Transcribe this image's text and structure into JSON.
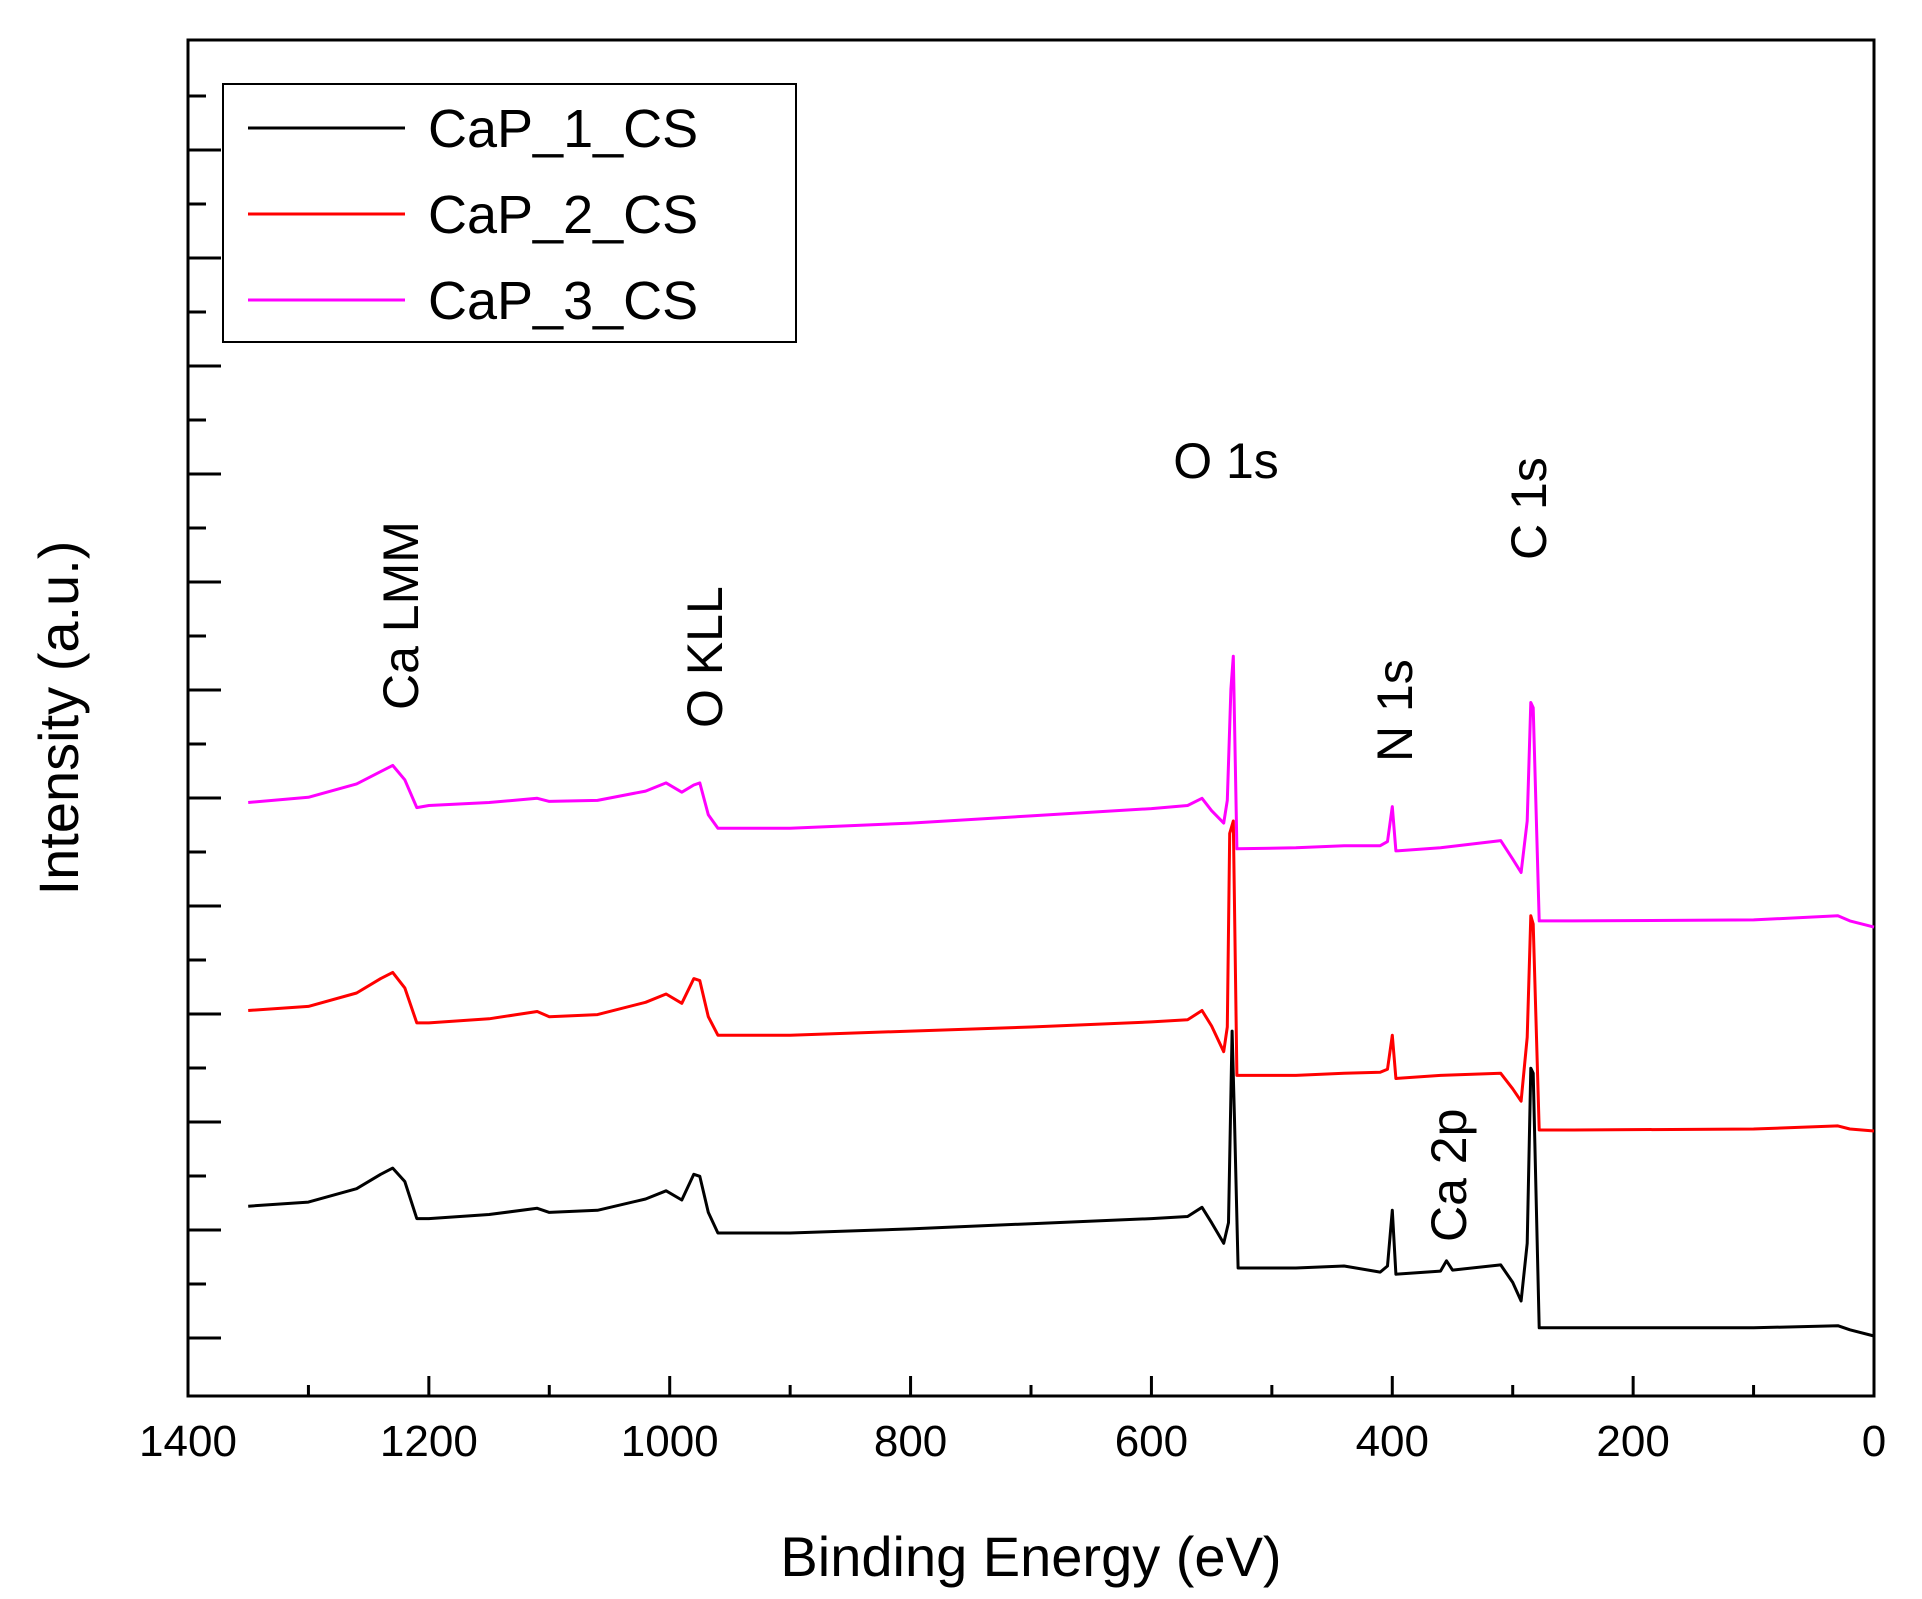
{
  "chart_data": {
    "type": "line",
    "title": "",
    "xlabel": "Binding Energy (eV)",
    "ylabel": "Intensity (a.u.)",
    "xlim": [
      1400,
      0
    ],
    "x_reversed": true,
    "xticks": [
      1400,
      1200,
      1000,
      800,
      600,
      400,
      200,
      0
    ],
    "y_ticks_unlabeled": true,
    "ylim": [
      0,
      12
    ],
    "grid": false,
    "legend_position": "top-left",
    "series": [
      {
        "name": "CaP_1_CS",
        "color": "#000000",
        "points": [
          [
            1350,
            1.26
          ],
          [
            1300,
            1.3
          ],
          [
            1260,
            1.43
          ],
          [
            1240,
            1.57
          ],
          [
            1230,
            1.63
          ],
          [
            1220,
            1.5
          ],
          [
            1210,
            1.14
          ],
          [
            1200,
            1.14
          ],
          [
            1150,
            1.18
          ],
          [
            1110,
            1.24
          ],
          [
            1100,
            1.2
          ],
          [
            1060,
            1.22
          ],
          [
            1020,
            1.33
          ],
          [
            1003,
            1.41
          ],
          [
            990,
            1.32
          ],
          [
            980,
            1.57
          ],
          [
            975,
            1.55
          ],
          [
            968,
            1.2
          ],
          [
            960,
            1.0
          ],
          [
            900,
            1.0
          ],
          [
            800,
            1.04
          ],
          [
            700,
            1.09
          ],
          [
            600,
            1.14
          ],
          [
            570,
            1.16
          ],
          [
            558,
            1.25
          ],
          [
            550,
            1.1
          ],
          [
            540,
            0.9
          ],
          [
            536,
            1.1
          ],
          [
            533,
            2.96
          ],
          [
            531,
            2.1
          ],
          [
            528,
            0.66
          ],
          [
            480,
            0.66
          ],
          [
            440,
            0.68
          ],
          [
            410,
            0.62
          ],
          [
            404,
            0.68
          ],
          [
            400,
            1.22
          ],
          [
            397,
            0.6
          ],
          [
            360,
            0.63
          ],
          [
            355,
            0.73
          ],
          [
            350,
            0.64
          ],
          [
            310,
            0.69
          ],
          [
            300,
            0.52
          ],
          [
            293,
            0.34
          ],
          [
            288,
            0.9
          ],
          [
            285,
            2.6
          ],
          [
            283,
            2.55
          ],
          [
            278,
            0.08
          ],
          [
            250,
            0.08
          ],
          [
            100,
            0.08
          ],
          [
            30,
            0.1
          ],
          [
            20,
            0.06
          ],
          [
            0,
            0.0
          ]
        ]
      },
      {
        "name": "CaP_2_CS",
        "color": "#ff0000",
        "points": [
          [
            1350,
            3.16
          ],
          [
            1300,
            3.2
          ],
          [
            1260,
            3.33
          ],
          [
            1240,
            3.47
          ],
          [
            1230,
            3.53
          ],
          [
            1220,
            3.38
          ],
          [
            1210,
            3.04
          ],
          [
            1200,
            3.04
          ],
          [
            1150,
            3.08
          ],
          [
            1110,
            3.15
          ],
          [
            1100,
            3.1
          ],
          [
            1060,
            3.12
          ],
          [
            1020,
            3.24
          ],
          [
            1003,
            3.32
          ],
          [
            990,
            3.23
          ],
          [
            980,
            3.47
          ],
          [
            975,
            3.45
          ],
          [
            968,
            3.1
          ],
          [
            960,
            2.92
          ],
          [
            900,
            2.92
          ],
          [
            800,
            2.96
          ],
          [
            700,
            3.0
          ],
          [
            600,
            3.05
          ],
          [
            570,
            3.07
          ],
          [
            558,
            3.16
          ],
          [
            550,
            3.01
          ],
          [
            540,
            2.76
          ],
          [
            537,
            3.0
          ],
          [
            535,
            4.88
          ],
          [
            532,
            5.0
          ],
          [
            529,
            2.53
          ],
          [
            480,
            2.53
          ],
          [
            440,
            2.55
          ],
          [
            410,
            2.56
          ],
          [
            404,
            2.59
          ],
          [
            400,
            2.92
          ],
          [
            397,
            2.5
          ],
          [
            360,
            2.53
          ],
          [
            310,
            2.55
          ],
          [
            300,
            2.4
          ],
          [
            293,
            2.28
          ],
          [
            288,
            2.9
          ],
          [
            285,
            4.08
          ],
          [
            283,
            4.0
          ],
          [
            278,
            2.0
          ],
          [
            250,
            2.0
          ],
          [
            100,
            2.01
          ],
          [
            30,
            2.04
          ],
          [
            20,
            2.01
          ],
          [
            0,
            1.99
          ]
        ]
      },
      {
        "name": "CaP_3_CS",
        "color": "#ff00ff",
        "points": [
          [
            1350,
            5.18
          ],
          [
            1300,
            5.23
          ],
          [
            1260,
            5.36
          ],
          [
            1240,
            5.48
          ],
          [
            1230,
            5.54
          ],
          [
            1220,
            5.4
          ],
          [
            1210,
            5.13
          ],
          [
            1200,
            5.15
          ],
          [
            1150,
            5.18
          ],
          [
            1110,
            5.22
          ],
          [
            1100,
            5.19
          ],
          [
            1060,
            5.2
          ],
          [
            1020,
            5.29
          ],
          [
            1003,
            5.37
          ],
          [
            990,
            5.28
          ],
          [
            980,
            5.35
          ],
          [
            975,
            5.37
          ],
          [
            968,
            5.06
          ],
          [
            960,
            4.93
          ],
          [
            900,
            4.93
          ],
          [
            800,
            4.98
          ],
          [
            700,
            5.05
          ],
          [
            600,
            5.12
          ],
          [
            570,
            5.15
          ],
          [
            558,
            5.22
          ],
          [
            550,
            5.1
          ],
          [
            540,
            4.98
          ],
          [
            537,
            5.2
          ],
          [
            534,
            6.28
          ],
          [
            532,
            6.6
          ],
          [
            529,
            4.73
          ],
          [
            480,
            4.74
          ],
          [
            440,
            4.76
          ],
          [
            410,
            4.76
          ],
          [
            404,
            4.8
          ],
          [
            400,
            5.14
          ],
          [
            397,
            4.71
          ],
          [
            360,
            4.74
          ],
          [
            310,
            4.81
          ],
          [
            300,
            4.63
          ],
          [
            293,
            4.5
          ],
          [
            288,
            5.0
          ],
          [
            285,
            6.15
          ],
          [
            283,
            6.1
          ],
          [
            278,
            4.03
          ],
          [
            250,
            4.03
          ],
          [
            100,
            4.04
          ],
          [
            30,
            4.08
          ],
          [
            20,
            4.03
          ],
          [
            0,
            3.97
          ]
        ]
      }
    ],
    "annotations": [
      {
        "text": "Ca LMM",
        "x": 1220,
        "rotated": true
      },
      {
        "text": "O KLL",
        "x": 975,
        "rotated": true
      },
      {
        "text": "O 1s",
        "x": 550,
        "rotated": false
      },
      {
        "text": "N 1s",
        "x": 390,
        "rotated": true
      },
      {
        "text": "Ca 2p",
        "x": 350,
        "rotated": true
      },
      {
        "text": "C 1s",
        "x": 282,
        "rotated": true
      }
    ]
  }
}
